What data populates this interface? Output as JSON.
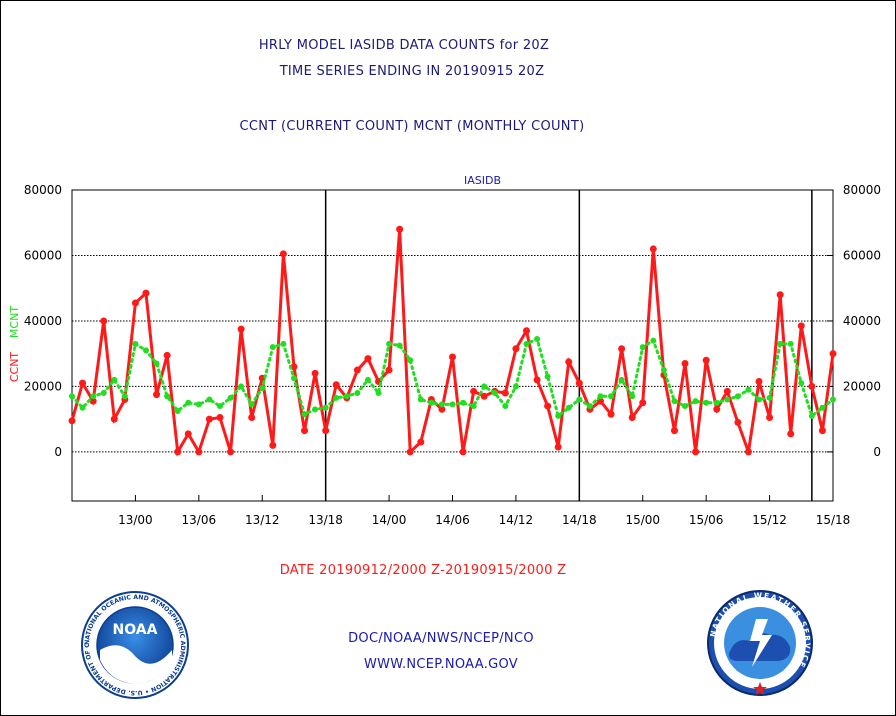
{
  "header": {
    "title_line1": "HRLY MODEL IASIDB DATA COUNTS for 20Z",
    "title_line2": "TIME SERIES ENDING IN 20190915 20Z",
    "subtitle": "CCNT (CURRENT COUNT) MCNT (MONTHLY COUNT)"
  },
  "footer": {
    "date_range": "DATE 20190912/2000 Z-20190915/2000 Z",
    "org": "DOC/NOAA/NWS/NCEP/NCO",
    "url": "WWW.NCEP.NOAA.GOV"
  },
  "logos": {
    "noaa_text": "NOAA",
    "noaa_ring": "NATIONAL OCEANIC AND ATMOSPHERIC ADMINISTRATION • U.S. DEPARTMENT OF COMMERCE •",
    "nws_ring": "NATIONAL WEATHER SERVICE"
  },
  "colors": {
    "ccnt": "#ff1a1a",
    "mcnt": "#22dd22",
    "title_blue": "#1a1aaa",
    "footer_red": "#ff1a1a"
  },
  "chart_data": {
    "type": "line",
    "title": "IASIDB",
    "ylabel_left_1": "CCNT",
    "ylabel_left_2": "MCNT",
    "ylim": [
      -15000,
      80000
    ],
    "yticks": [
      0,
      20000,
      40000,
      60000,
      80000
    ],
    "ytick_labels": [
      "0",
      "20000",
      "40000",
      "60000",
      "80000"
    ],
    "xlim": [
      -2,
      70
    ],
    "xticks": [
      4,
      10,
      16,
      22,
      28,
      34,
      40,
      46,
      52,
      58,
      64,
      70
    ],
    "xtick_labels": [
      "13/00",
      "13/06",
      "13/12",
      "13/18",
      "14/00",
      "14/06",
      "14/12",
      "14/18",
      "15/00",
      "15/06",
      "15/12",
      "15/18"
    ],
    "day_boundaries": [
      22,
      46,
      68
    ],
    "grid": "horizontal",
    "x": [
      -2,
      -1,
      0,
      1,
      2,
      3,
      4,
      5,
      6,
      7,
      8,
      9,
      10,
      11,
      12,
      13,
      14,
      15,
      16,
      17,
      18,
      19,
      20,
      21,
      22,
      23,
      24,
      25,
      26,
      27,
      28,
      29,
      30,
      31,
      32,
      33,
      34,
      35,
      36,
      37,
      38,
      39,
      40,
      41,
      42,
      43,
      44,
      45,
      46,
      47,
      48,
      49,
      50,
      51,
      52,
      53,
      54,
      55,
      56,
      57,
      58,
      59,
      60,
      61,
      62,
      63,
      64,
      65,
      66,
      67,
      68,
      69,
      70
    ],
    "series": [
      {
        "name": "CCNT",
        "values": [
          9500,
          21000,
          15500,
          40000,
          10000,
          16000,
          45500,
          48500,
          17500,
          29500,
          0,
          5500,
          0,
          10000,
          10500,
          0,
          37500,
          10500,
          22500,
          2000,
          60500,
          26000,
          6500,
          24000,
          6500,
          20500,
          16500,
          25000,
          28500,
          21500,
          25000,
          68000,
          0,
          3000,
          16000,
          13000,
          29000,
          0,
          18500,
          17000,
          18500,
          18000,
          31500,
          37000,
          22000,
          14000,
          1500,
          27500,
          21000,
          13000,
          15500,
          11500,
          31500,
          10500,
          15000,
          62000,
          23500,
          6500,
          27000,
          0,
          28000,
          13000,
          18500,
          9000,
          0,
          21500,
          10500,
          48000,
          5500,
          38500,
          20000,
          6500,
          30000
        ]
      },
      {
        "name": "MCNT",
        "values": [
          17000,
          13500,
          17000,
          18000,
          22000,
          17000,
          33000,
          31000,
          27000,
          17000,
          12500,
          15000,
          14500,
          16000,
          14000,
          16500,
          20000,
          14500,
          19500,
          32000,
          33000,
          22500,
          11500,
          13000,
          13500,
          16500,
          17000,
          18000,
          22000,
          18000,
          33000,
          32500,
          28000,
          16000,
          15000,
          14500,
          14500,
          15000,
          14000,
          20000,
          18000,
          14000,
          20000,
          33000,
          34500,
          23000,
          11000,
          13500,
          16000,
          14000,
          17000,
          17000,
          22000,
          17000,
          32000,
          34000,
          25000,
          15500,
          14000,
          15500,
          15000,
          15000,
          16000,
          17000,
          19000,
          16000,
          16500,
          33000,
          33000,
          21000,
          11000,
          13500,
          16000
        ]
      }
    ]
  }
}
